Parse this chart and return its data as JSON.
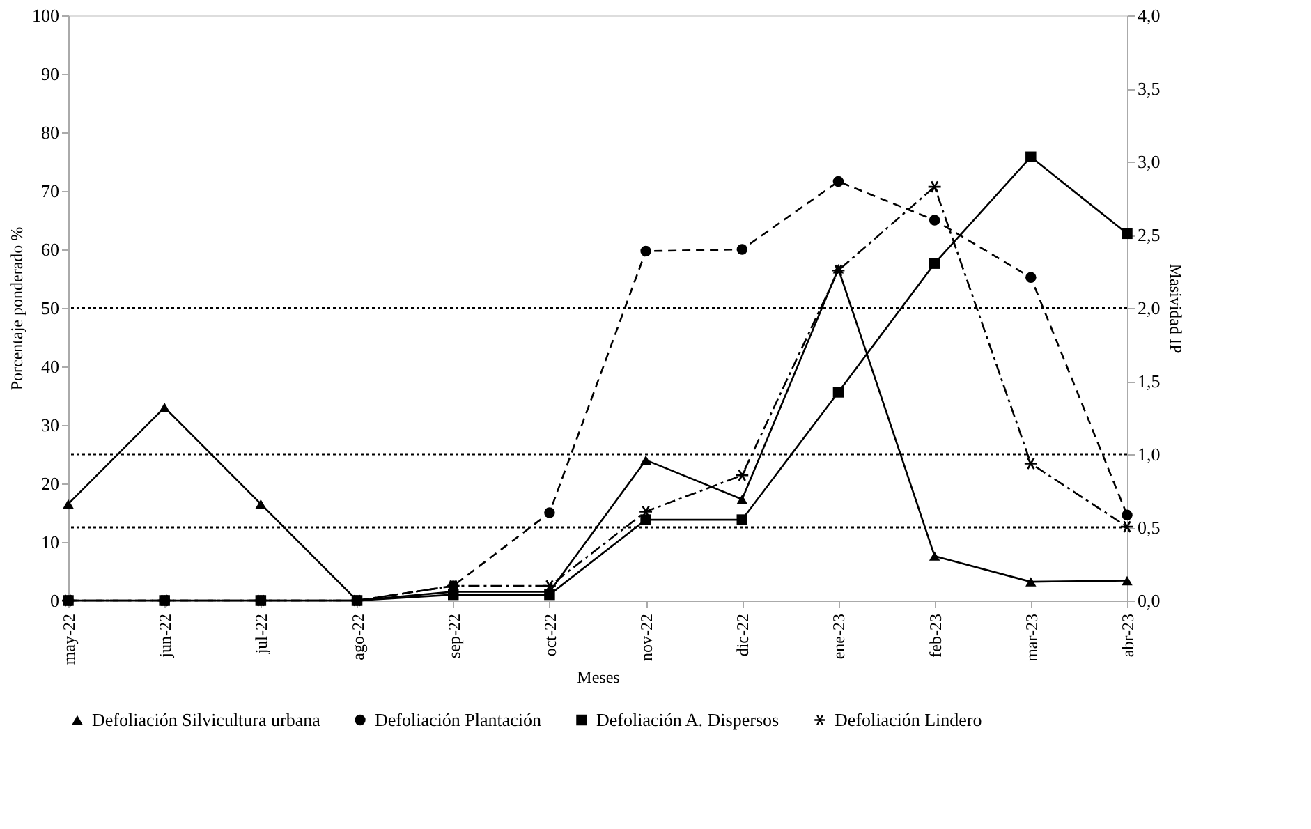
{
  "chart_data": {
    "type": "line",
    "xlabel": "Meses",
    "ylabel": "Porcentaje ponderado %",
    "y2label": "Masividad IP",
    "categories": [
      "may-22",
      "jun-22",
      "jul-22",
      "ago-22",
      "sep-22",
      "oct-22",
      "nov-22",
      "dic-22",
      "ene-23",
      "feb-23",
      "mar-23",
      "abr-23"
    ],
    "series": [
      {
        "name": "Defoliación Silvicultura urbana",
        "color": "#000000",
        "marker": "triangle",
        "line_style": "solid",
        "values": [
          16.5,
          33,
          16.5,
          0,
          1.5,
          1.5,
          24,
          17.3,
          56.7,
          7.6,
          3.2,
          3.4
        ]
      },
      {
        "name": "Defoliación Plantación",
        "color": "#000000",
        "marker": "circle",
        "line_style": "dashed",
        "values": [
          0,
          0,
          0,
          0,
          2.5,
          15,
          59.7,
          60,
          71.6,
          65,
          55.2,
          14.6
        ]
      },
      {
        "name": "Defoliación A. Dispersos",
        "color": "#000000",
        "marker": "square",
        "line_style": "solid",
        "values": [
          0,
          0,
          0,
          0,
          1,
          1,
          13.8,
          13.8,
          35.6,
          57.6,
          75.8,
          62.7
        ]
      },
      {
        "name": "Defoliación  Lindero",
        "color": "#000000",
        "marker": "cross",
        "line_style": "dashdot",
        "values": [
          0,
          0,
          0,
          0,
          2.5,
          2.5,
          15.2,
          21.4,
          56.4,
          70.7,
          23.4,
          12.6
        ]
      }
    ],
    "ylim": [
      0,
      100
    ],
    "yticks": [
      0,
      10,
      20,
      30,
      40,
      50,
      60,
      70,
      80,
      90,
      100
    ],
    "y2lim": [
      0,
      4
    ],
    "y2ticks": [
      {
        "value": 0,
        "label": "0,0"
      },
      {
        "value": 0.5,
        "label": "0,5"
      },
      {
        "value": 1,
        "label": "1,0"
      },
      {
        "value": 1.5,
        "label": "1,5"
      },
      {
        "value": 2,
        "label": "2,0"
      },
      {
        "value": 2.5,
        "label": "2,5"
      },
      {
        "value": 3,
        "label": "3,0"
      },
      {
        "value": 3.5,
        "label": "3,5"
      },
      {
        "value": 4,
        "label": "4,0"
      }
    ],
    "ref_lines": [
      {
        "axis": "y2",
        "value": 2,
        "line_style": "dotted",
        "color": "#000000"
      },
      {
        "axis": "y2",
        "value": 1,
        "line_style": "dotted",
        "color": "#000000"
      },
      {
        "axis": "y2",
        "value": 0.5,
        "line_style": "dotted",
        "color": "#000000"
      }
    ],
    "grid": false,
    "legend": "bottom"
  }
}
